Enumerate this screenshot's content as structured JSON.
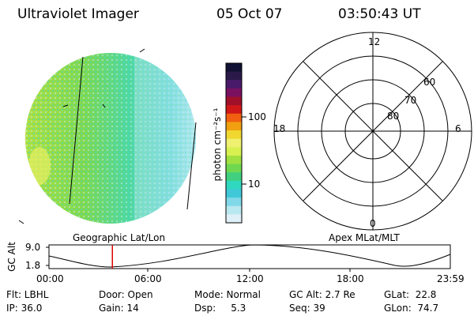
{
  "header": {
    "title": "Ultraviolet Imager",
    "date": "05 Oct 07",
    "time": "03:50:43 UT"
  },
  "colorbar": {
    "unit_label": "photon cm⁻²s⁻¹",
    "ticks": [
      "100",
      "10"
    ],
    "colors": [
      "#111133",
      "#2a1a4a",
      "#4a1a6a",
      "#7a1060",
      "#a0102a",
      "#d01818",
      "#f06010",
      "#f0a010",
      "#f0d830",
      "#f0f070",
      "#d8f050",
      "#a0e040",
      "#70d850",
      "#40d080",
      "#30d8c0",
      "#40c8d8",
      "#80d8e8",
      "#b8e8f0",
      "#e0f0f8"
    ]
  },
  "labels": {
    "left_projection": "Geographic Lat/Lon",
    "right_projection": "Apex MLat/MLT"
  },
  "polar_plot": {
    "mlt_labels": [
      "12",
      "18",
      "6",
      "0"
    ],
    "mlat_labels": [
      "60",
      "70",
      "80"
    ]
  },
  "timeline": {
    "axis_title": "GC Alt",
    "y_ticks": [
      "9.0",
      "1.8"
    ],
    "x_ticks": [
      "00:00",
      "06:00",
      "12:00",
      "18:00",
      "23:59"
    ],
    "current_time_fraction": 0.158,
    "marker_color": "#e00000"
  },
  "info": {
    "flt": "Flt: LBHL",
    "door": "Door: Open",
    "mode": "Mode: Normal",
    "gcalt": "GC Alt: 2.7 Re",
    "glat": "GLat:  22.8",
    "ip": "IP: 36.0",
    "gain": "Gain: 14",
    "dsp": "Dsp:     5.3",
    "seq": "Seq: 39",
    "glon": "GLon:  74.7"
  }
}
